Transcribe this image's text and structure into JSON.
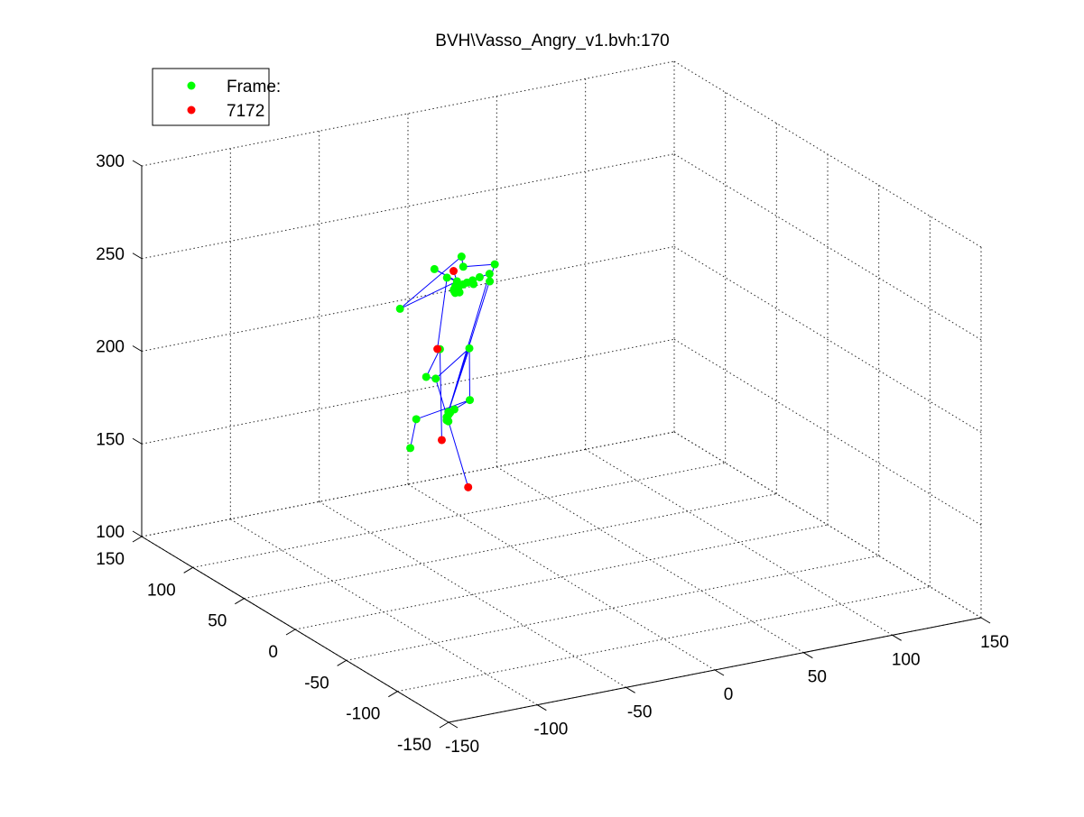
{
  "figure": {
    "title": "BVH\\Vasso_Angry_v1.bvh:170",
    "legend": [
      {
        "label": "Frame:",
        "color": "#00ff00"
      },
      {
        "label": "7172",
        "color": "#ff0000"
      }
    ]
  },
  "chart_data": {
    "type": "scatter",
    "title": "BVH\\Vasso_Angry_v1.bvh:170",
    "projection": "3d",
    "xlim": [
      -150,
      150
    ],
    "ylim": [
      -150,
      150
    ],
    "zlim": [
      100,
      300
    ],
    "x_ticks": [
      "-150",
      "-100",
      "-50",
      "0",
      "50",
      "100",
      "150"
    ],
    "y_ticks": [
      "-150",
      "-100",
      "-50",
      "0",
      "50",
      "100",
      "150"
    ],
    "z_ticks": [
      "100",
      "150",
      "200",
      "250",
      "300"
    ],
    "grid": true,
    "legend_placement": "top-left",
    "colors": {
      "joint": "#00ff00",
      "end_site": "#ff0000",
      "bone": "#0000ff"
    },
    "series": [
      {
        "name": "Frame:",
        "color": "#00ff00",
        "points": [
          [
            7.9,
            124.2,
            146.2
          ],
          [
            7.9,
            122.6,
            146.2
          ],
          [
            7.9,
            125.8,
            142.8
          ],
          [
            7.9,
            124.2,
            144.5
          ],
          [
            7.9,
            124.2,
            141.1
          ],
          [
            7.9,
            125.8,
            141.1
          ],
          [
            12.2,
            125.8,
            146.2
          ],
          [
            20.9,
            125.8,
            149.6
          ],
          [
            -10.9,
            123.0,
            146.2
          ],
          [
            -11.7,
            127.4,
            129.3
          ],
          [
            42.3,
            143.7,
            207.7
          ],
          [
            35.2,
            141.0,
            208.1
          ],
          [
            29.6,
            138.2,
            208.4
          ],
          [
            25.1,
            135.9,
            208.8
          ],
          [
            22.2,
            134.6,
            208.8
          ],
          [
            18.8,
            132.9,
            208.8
          ],
          [
            17.3,
            132.1,
            208.8
          ],
          [
            41.5,
            142.1,
            204.3
          ],
          [
            29.6,
            137.3,
            206.7
          ],
          [
            18.7,
            132.1,
            206.0
          ],
          [
            15.3,
            130.4,
            206.9
          ],
          [
            14.0,
            129.5,
            209.2
          ],
          [
            15.0,
            129.7,
            210.8
          ],
          [
            14.3,
            129.9,
            208.5
          ],
          [
            45.5,
            144.1,
            212.1
          ],
          [
            21.8,
            133.8,
            218.7
          ],
          [
            21.3,
            134.6,
            224.0
          ],
          [
            -25.4,
            113.7,
            211.6
          ],
          [
            12.4,
            123.6,
            216.0
          ],
          [
            21.5,
            127.3,
            176.9
          ],
          [
            -1.5,
            120.3,
            167.2
          ],
          [
            -7.6,
            119.0,
            169.7
          ],
          [
            2.5,
            123.1,
            181.4
          ],
          [
            2.1,
            115.5,
            222.6
          ],
          [
            2.8,
            129.0,
            222.6
          ]
        ]
      },
      {
        "name": "7172",
        "color": "#ff0000",
        "points": [
          [
            12.2,
            126.6,
            220.6
          ],
          [
            0.8,
            122.6,
            182.0
          ],
          [
            5.1,
            125.8,
            131.0
          ],
          [
            20.9,
            127.4,
            102.0
          ]
        ]
      }
    ]
  }
}
